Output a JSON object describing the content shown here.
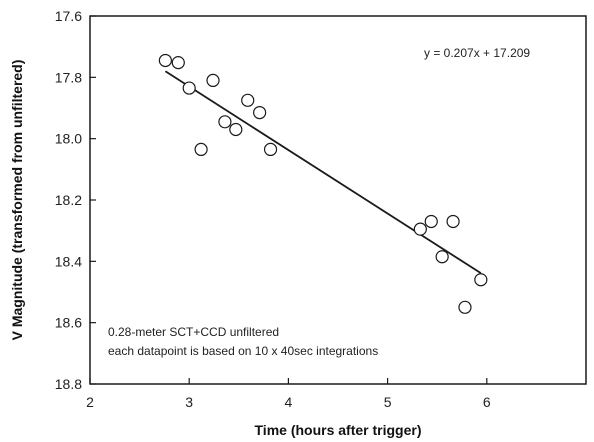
{
  "chart_data": {
    "type": "scatter",
    "title": "",
    "xlabel": "Time  (hours after trigger)",
    "ylabel": "V Magnitude (transformed from unfiltered)",
    "xlim": [
      2,
      7
    ],
    "ylim": [
      17.6,
      18.8
    ],
    "y_inverted": true,
    "x_ticks": [
      2,
      3,
      4,
      5,
      6
    ],
    "y_ticks": [
      17.6,
      17.8,
      18.0,
      18.2,
      18.4,
      18.6,
      18.8
    ],
    "x_tick_labels": [
      "2",
      "3",
      "4",
      "5",
      "6"
    ],
    "y_tick_labels": [
      "17.6",
      "17.8",
      "18.0",
      "18.2",
      "18.4",
      "18.6",
      "18.8"
    ],
    "grid": false,
    "legend": "none",
    "marker": "open-circle",
    "points": [
      {
        "x": 2.76,
        "y": 17.745
      },
      {
        "x": 2.89,
        "y": 17.752
      },
      {
        "x": 3.0,
        "y": 17.835
      },
      {
        "x": 3.12,
        "y": 18.035
      },
      {
        "x": 3.24,
        "y": 17.81
      },
      {
        "x": 3.36,
        "y": 17.945
      },
      {
        "x": 3.47,
        "y": 17.97
      },
      {
        "x": 3.59,
        "y": 17.875
      },
      {
        "x": 3.71,
        "y": 17.915
      },
      {
        "x": 3.82,
        "y": 18.035
      },
      {
        "x": 5.33,
        "y": 18.295
      },
      {
        "x": 5.44,
        "y": 18.27
      },
      {
        "x": 5.55,
        "y": 18.385
      },
      {
        "x": 5.66,
        "y": 18.27
      },
      {
        "x": 5.78,
        "y": 18.55
      },
      {
        "x": 5.94,
        "y": 18.46
      }
    ],
    "trendline": {
      "slope": 0.207,
      "intercept": 17.209,
      "x_range": [
        2.76,
        5.94
      ],
      "equation_label": "y = 0.207x + 17.209"
    },
    "annotations": [
      "0.28-meter SCT+CCD unfiltered",
      "each datapoint is based on 10 x 40sec integrations"
    ],
    "colors": {
      "axis": "#1a1a1a",
      "trendline": "#1a1a1a",
      "marker_stroke": "#1a1a1a",
      "marker_fill": "#ffffff",
      "background": "#ffffff"
    }
  }
}
